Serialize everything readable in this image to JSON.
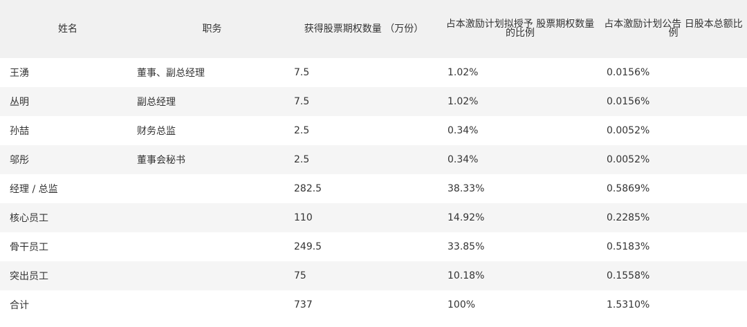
{
  "chart_data": {
    "type": "table",
    "columns": [
      "姓名",
      "职务",
      "获得股票期权数量 （万份）",
      "占本激励计划拟授予 股票期权数量的比例",
      "占本激励计划公告 日股本总额比例"
    ],
    "rows": [
      [
        "王湧",
        "董事、副总经理",
        "7.5",
        "1.02%",
        "0.0156%"
      ],
      [
        "丛明",
        "副总经理",
        "7.5",
        "1.02%",
        "0.0156%"
      ],
      [
        "孙喆",
        "财务总监",
        "2.5",
        "0.34%",
        "0.0052%"
      ],
      [
        "邬彤",
        "董事会秘书",
        "2.5",
        "0.34%",
        "0.0052%"
      ],
      [
        "经理 / 总监",
        "",
        "282.5",
        "38.33%",
        "0.5869%"
      ],
      [
        "核心员工",
        "",
        "110",
        "14.92%",
        "0.2285%"
      ],
      [
        "骨干员工",
        "",
        "249.5",
        "33.85%",
        "0.5183%"
      ],
      [
        "突出员工",
        "",
        "75",
        "10.18%",
        "0.1558%"
      ],
      [
        "合计",
        "",
        "737",
        "100%",
        "1.5310%"
      ]
    ]
  }
}
